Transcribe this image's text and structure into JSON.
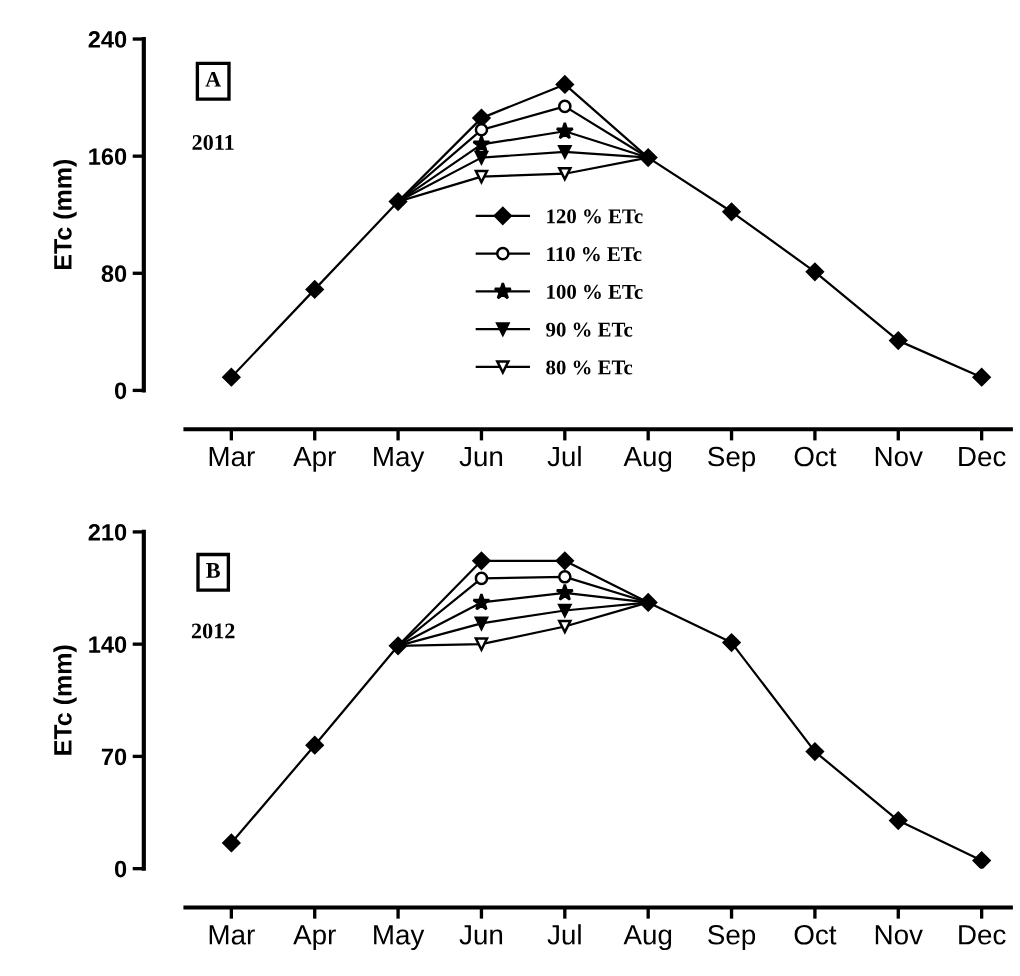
{
  "chart_data": [
    {
      "type": "line",
      "ylabel": "ETc (mm)",
      "annotations": [
        "A",
        "2011"
      ],
      "categories": [
        "Mar",
        "Apr",
        "May",
        "Jun",
        "Jul",
        "Aug",
        "Sep",
        "Oct",
        "Nov",
        "Dec"
      ],
      "ylim": [
        0,
        240
      ],
      "yticks": [
        0,
        80,
        160,
        240
      ],
      "grid": false,
      "legend": "bottom",
      "series": [
        {
          "name": "120 % ETc",
          "color": "#000000",
          "marker": "diamond",
          "values": [
            9,
            69,
            129,
            186,
            209,
            159,
            122,
            81,
            34,
            9
          ]
        },
        {
          "name": "110 % ETc",
          "color": "#000000",
          "marker": "circle",
          "values": [
            null,
            null,
            129,
            178,
            194,
            159,
            null,
            null,
            null,
            null
          ]
        },
        {
          "name": "100 % ETc",
          "color": "#000000",
          "marker": "star",
          "values": [
            null,
            null,
            129,
            168,
            177,
            159,
            null,
            null,
            null,
            null
          ]
        },
        {
          "name": "90 % ETc",
          "color": "#000000",
          "marker": "triangle",
          "values": [
            null,
            null,
            129,
            159,
            163,
            159,
            null,
            null,
            null,
            null
          ]
        },
        {
          "name": "80 % ETc",
          "color": "#000000",
          "marker": "triangle",
          "values": [
            null,
            null,
            129,
            146,
            148,
            159,
            null,
            null,
            null,
            null
          ]
        }
      ]
    },
    {
      "type": "line",
      "ylabel": "ETc (mm)",
      "annotations": [
        "B",
        "2012"
      ],
      "categories": [
        "Mar",
        "Apr",
        "May",
        "Jun",
        "Jul",
        "Aug",
        "Sep",
        "Oct",
        "Nov",
        "Dec"
      ],
      "ylim": [
        0,
        210
      ],
      "yticks": [
        0,
        70,
        140,
        210
      ],
      "grid": false,
      "series": [
        {
          "color": "#000000",
          "marker": "diamond",
          "values": [
            16,
            77,
            139,
            192,
            192,
            166,
            141,
            73,
            30,
            5
          ]
        },
        {
          "color": "#000000",
          "marker": "circle",
          "values": [
            null,
            null,
            139,
            181,
            182,
            166,
            null,
            null,
            null,
            null
          ]
        },
        {
          "color": "#000000",
          "marker": "star",
          "values": [
            null,
            null,
            139,
            166,
            172,
            166,
            null,
            null,
            null,
            null
          ]
        },
        {
          "color": "#000000",
          "marker": "triangle",
          "values": [
            null,
            null,
            139,
            153,
            161,
            166,
            null,
            null,
            null,
            null
          ]
        },
        {
          "color": "#000000",
          "marker": "triangle",
          "values": [
            null,
            null,
            139,
            140,
            151,
            166,
            null,
            null,
            null,
            null
          ]
        }
      ]
    }
  ]
}
